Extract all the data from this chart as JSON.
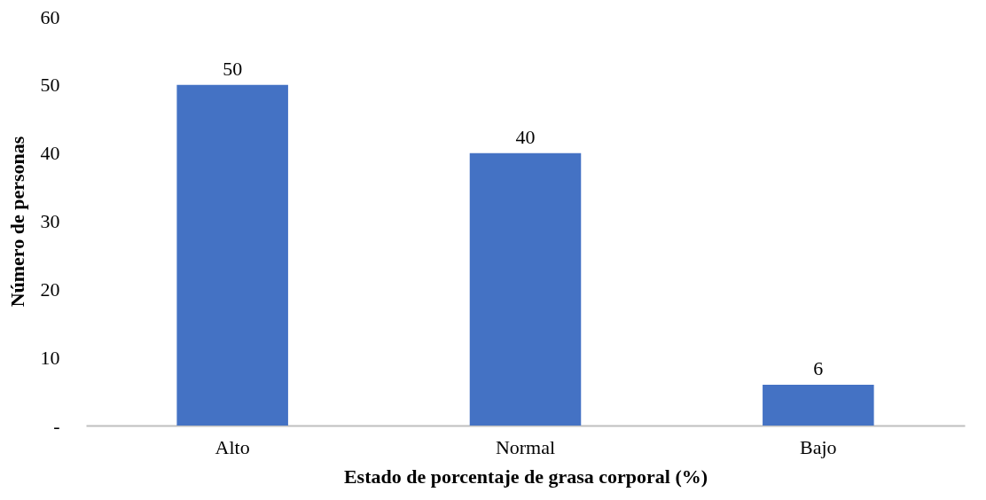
{
  "chart_data": {
    "type": "bar",
    "xlabel": "Estado de porcentaje de grasa corporal (%)",
    "ylabel": "Número de personas",
    "categories": [
      "Alto",
      "Normal",
      "Bajo"
    ],
    "values": [
      50,
      40,
      6
    ],
    "color": "#4472c4",
    "ylim": [
      0,
      60
    ],
    "yticks": [
      {
        "value": 0,
        "label": "-"
      },
      10,
      20,
      30,
      40,
      50,
      60
    ],
    "data_labels": true,
    "grid": false
  }
}
